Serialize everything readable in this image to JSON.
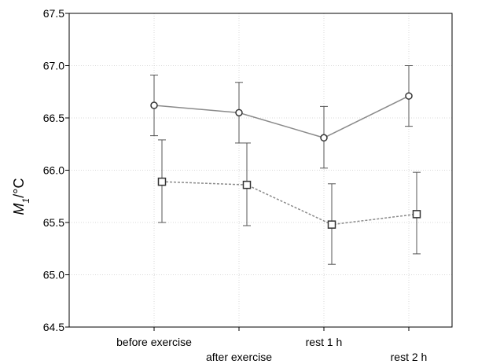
{
  "chart_data": {
    "type": "line",
    "title": "",
    "xlabel": "",
    "ylabel": {
      "main": "M",
      "sub": "1",
      "unit": "/°C"
    },
    "categories": [
      "before exercise",
      "after exercise",
      "rest 1 h",
      "rest 2 h"
    ],
    "ylim": [
      64.5,
      67.5
    ],
    "yticks": [
      "64.5",
      "65.0",
      "65.5",
      "66.0",
      "66.5",
      "67.0",
      "67.5"
    ],
    "grid": true,
    "legend": "none",
    "series": [
      {
        "marker": "circle",
        "line_style": "solid",
        "color": "#8a8a8a",
        "values": [
          66.62,
          66.55,
          66.31,
          66.71
        ],
        "err_low": [
          66.33,
          66.26,
          66.02,
          66.42
        ],
        "err_high": [
          66.91,
          66.84,
          66.61,
          67.0
        ]
      },
      {
        "marker": "square",
        "line_style": "dashed",
        "color": "#8a8a8a",
        "values": [
          65.89,
          65.86,
          65.48,
          65.58
        ],
        "err_low": [
          65.5,
          65.47,
          65.1,
          65.2
        ],
        "err_high": [
          66.29,
          66.26,
          65.87,
          65.98
        ]
      }
    ]
  }
}
